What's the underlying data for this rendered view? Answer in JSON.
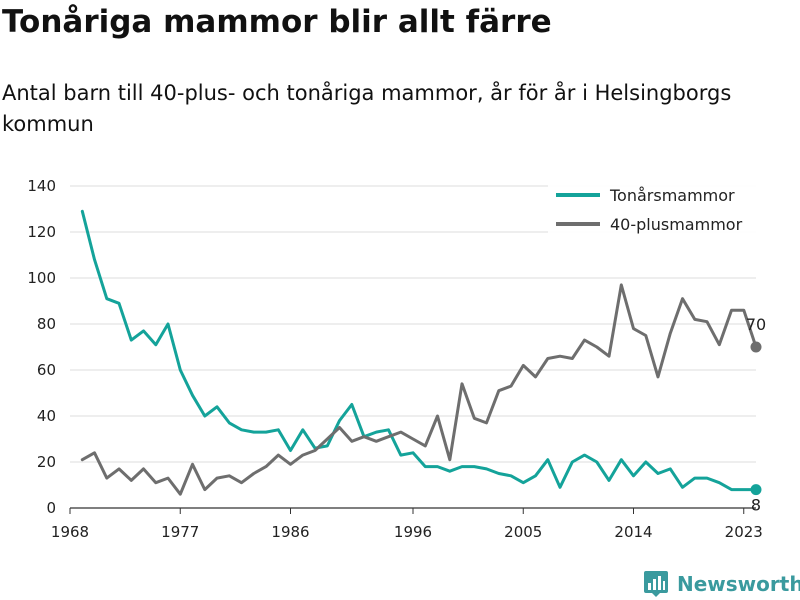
{
  "title": "Tonåriga mammor blir allt färre",
  "subtitle": "Antal barn till 40-plus- och tonåriga mammor, år för år i Helsingborgs kommun",
  "brand": "Newsworthy",
  "colors": {
    "teen": "#14a39a",
    "forty": "#6e6e6e",
    "grid": "#dddddd",
    "brand": "#3a9a9e"
  },
  "chart_data": {
    "type": "line",
    "xlim": [
      1968,
      2024
    ],
    "ylim": [
      0,
      140
    ],
    "x_ticks": [
      1968,
      1977,
      1986,
      1996,
      2005,
      2014,
      2023
    ],
    "y_ticks": [
      0,
      20,
      40,
      60,
      80,
      100,
      120,
      140
    ],
    "grid": true,
    "legend_position": "top-right",
    "x": [
      1969,
      1970,
      1971,
      1972,
      1973,
      1974,
      1975,
      1976,
      1977,
      1978,
      1979,
      1980,
      1981,
      1982,
      1983,
      1984,
      1985,
      1986,
      1987,
      1988,
      1989,
      1990,
      1991,
      1992,
      1993,
      1994,
      1995,
      1996,
      1997,
      1998,
      1999,
      2000,
      2001,
      2002,
      2003,
      2004,
      2005,
      2006,
      2007,
      2008,
      2009,
      2010,
      2011,
      2012,
      2013,
      2014,
      2015,
      2016,
      2017,
      2018,
      2019,
      2020,
      2021,
      2022,
      2023,
      2024
    ],
    "series": [
      {
        "name": "Tonårsmammor",
        "color": "#14a39a",
        "end_label": "8",
        "values": [
          129,
          108,
          91,
          89,
          73,
          77,
          71,
          80,
          60,
          49,
          40,
          44,
          37,
          34,
          33,
          33,
          34,
          25,
          34,
          26,
          27,
          38,
          45,
          31,
          33,
          34,
          23,
          24,
          18,
          18,
          16,
          18,
          18,
          17,
          15,
          14,
          11,
          14,
          21,
          9,
          20,
          23,
          20,
          12,
          21,
          14,
          20,
          15,
          17,
          9,
          13,
          13,
          11,
          8,
          8,
          8
        ]
      },
      {
        "name": "40-plusmammor",
        "color": "#6e6e6e",
        "end_label": "70",
        "values": [
          21,
          24,
          13,
          17,
          12,
          17,
          11,
          13,
          6,
          19,
          8,
          13,
          14,
          11,
          15,
          18,
          23,
          19,
          23,
          25,
          30,
          35,
          29,
          31,
          29,
          31,
          33,
          30,
          27,
          40,
          21,
          54,
          39,
          37,
          51,
          53,
          62,
          57,
          65,
          66,
          65,
          73,
          70,
          66,
          97,
          78,
          75,
          57,
          76,
          91,
          82,
          81,
          71,
          86,
          86,
          70
        ]
      }
    ]
  }
}
